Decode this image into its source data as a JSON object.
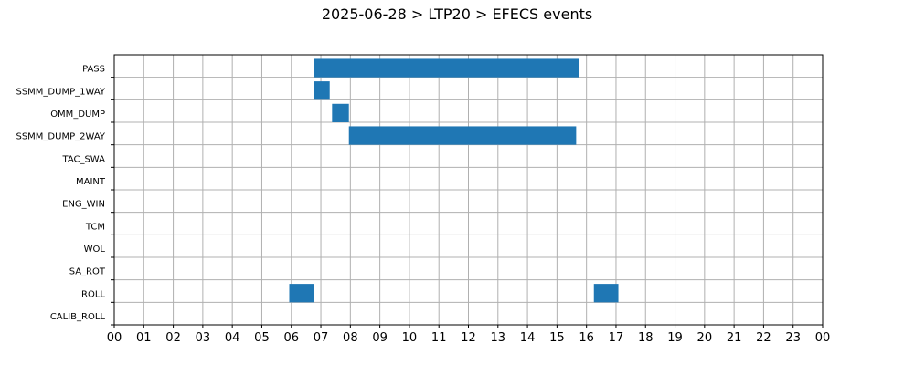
{
  "chart_data": {
    "type": "gantt",
    "title": "2025-06-28 > LTP20 > EFECS events",
    "x_tick_labels": [
      "00",
      "01",
      "02",
      "03",
      "04",
      "05",
      "06",
      "07",
      "08",
      "09",
      "10",
      "11",
      "12",
      "13",
      "14",
      "15",
      "16",
      "17",
      "18",
      "19",
      "20",
      "21",
      "22",
      "23",
      "00"
    ],
    "xlim_hours": [
      0,
      24
    ],
    "grid": true,
    "bar_color": "#1f77b4",
    "rows": [
      {
        "label": "PASS",
        "events": [
          [
            6.78,
            15.75
          ]
        ]
      },
      {
        "label": "SSMM_DUMP_1WAY",
        "events": [
          [
            6.78,
            7.3
          ]
        ]
      },
      {
        "label": "OMM_DUMP",
        "events": [
          [
            7.38,
            7.95
          ]
        ]
      },
      {
        "label": "SSMM_DUMP_2WAY",
        "events": [
          [
            7.95,
            15.65
          ]
        ]
      },
      {
        "label": "TAC_SWA",
        "events": []
      },
      {
        "label": "MAINT",
        "events": []
      },
      {
        "label": "ENG_WIN",
        "events": []
      },
      {
        "label": "TCM",
        "events": []
      },
      {
        "label": "WOL",
        "events": []
      },
      {
        "label": "SA_ROT",
        "events": []
      },
      {
        "label": "ROLL",
        "events": [
          [
            5.93,
            6.77
          ],
          [
            16.25,
            17.08
          ]
        ]
      },
      {
        "label": "CALIB_ROLL",
        "events": []
      }
    ]
  }
}
